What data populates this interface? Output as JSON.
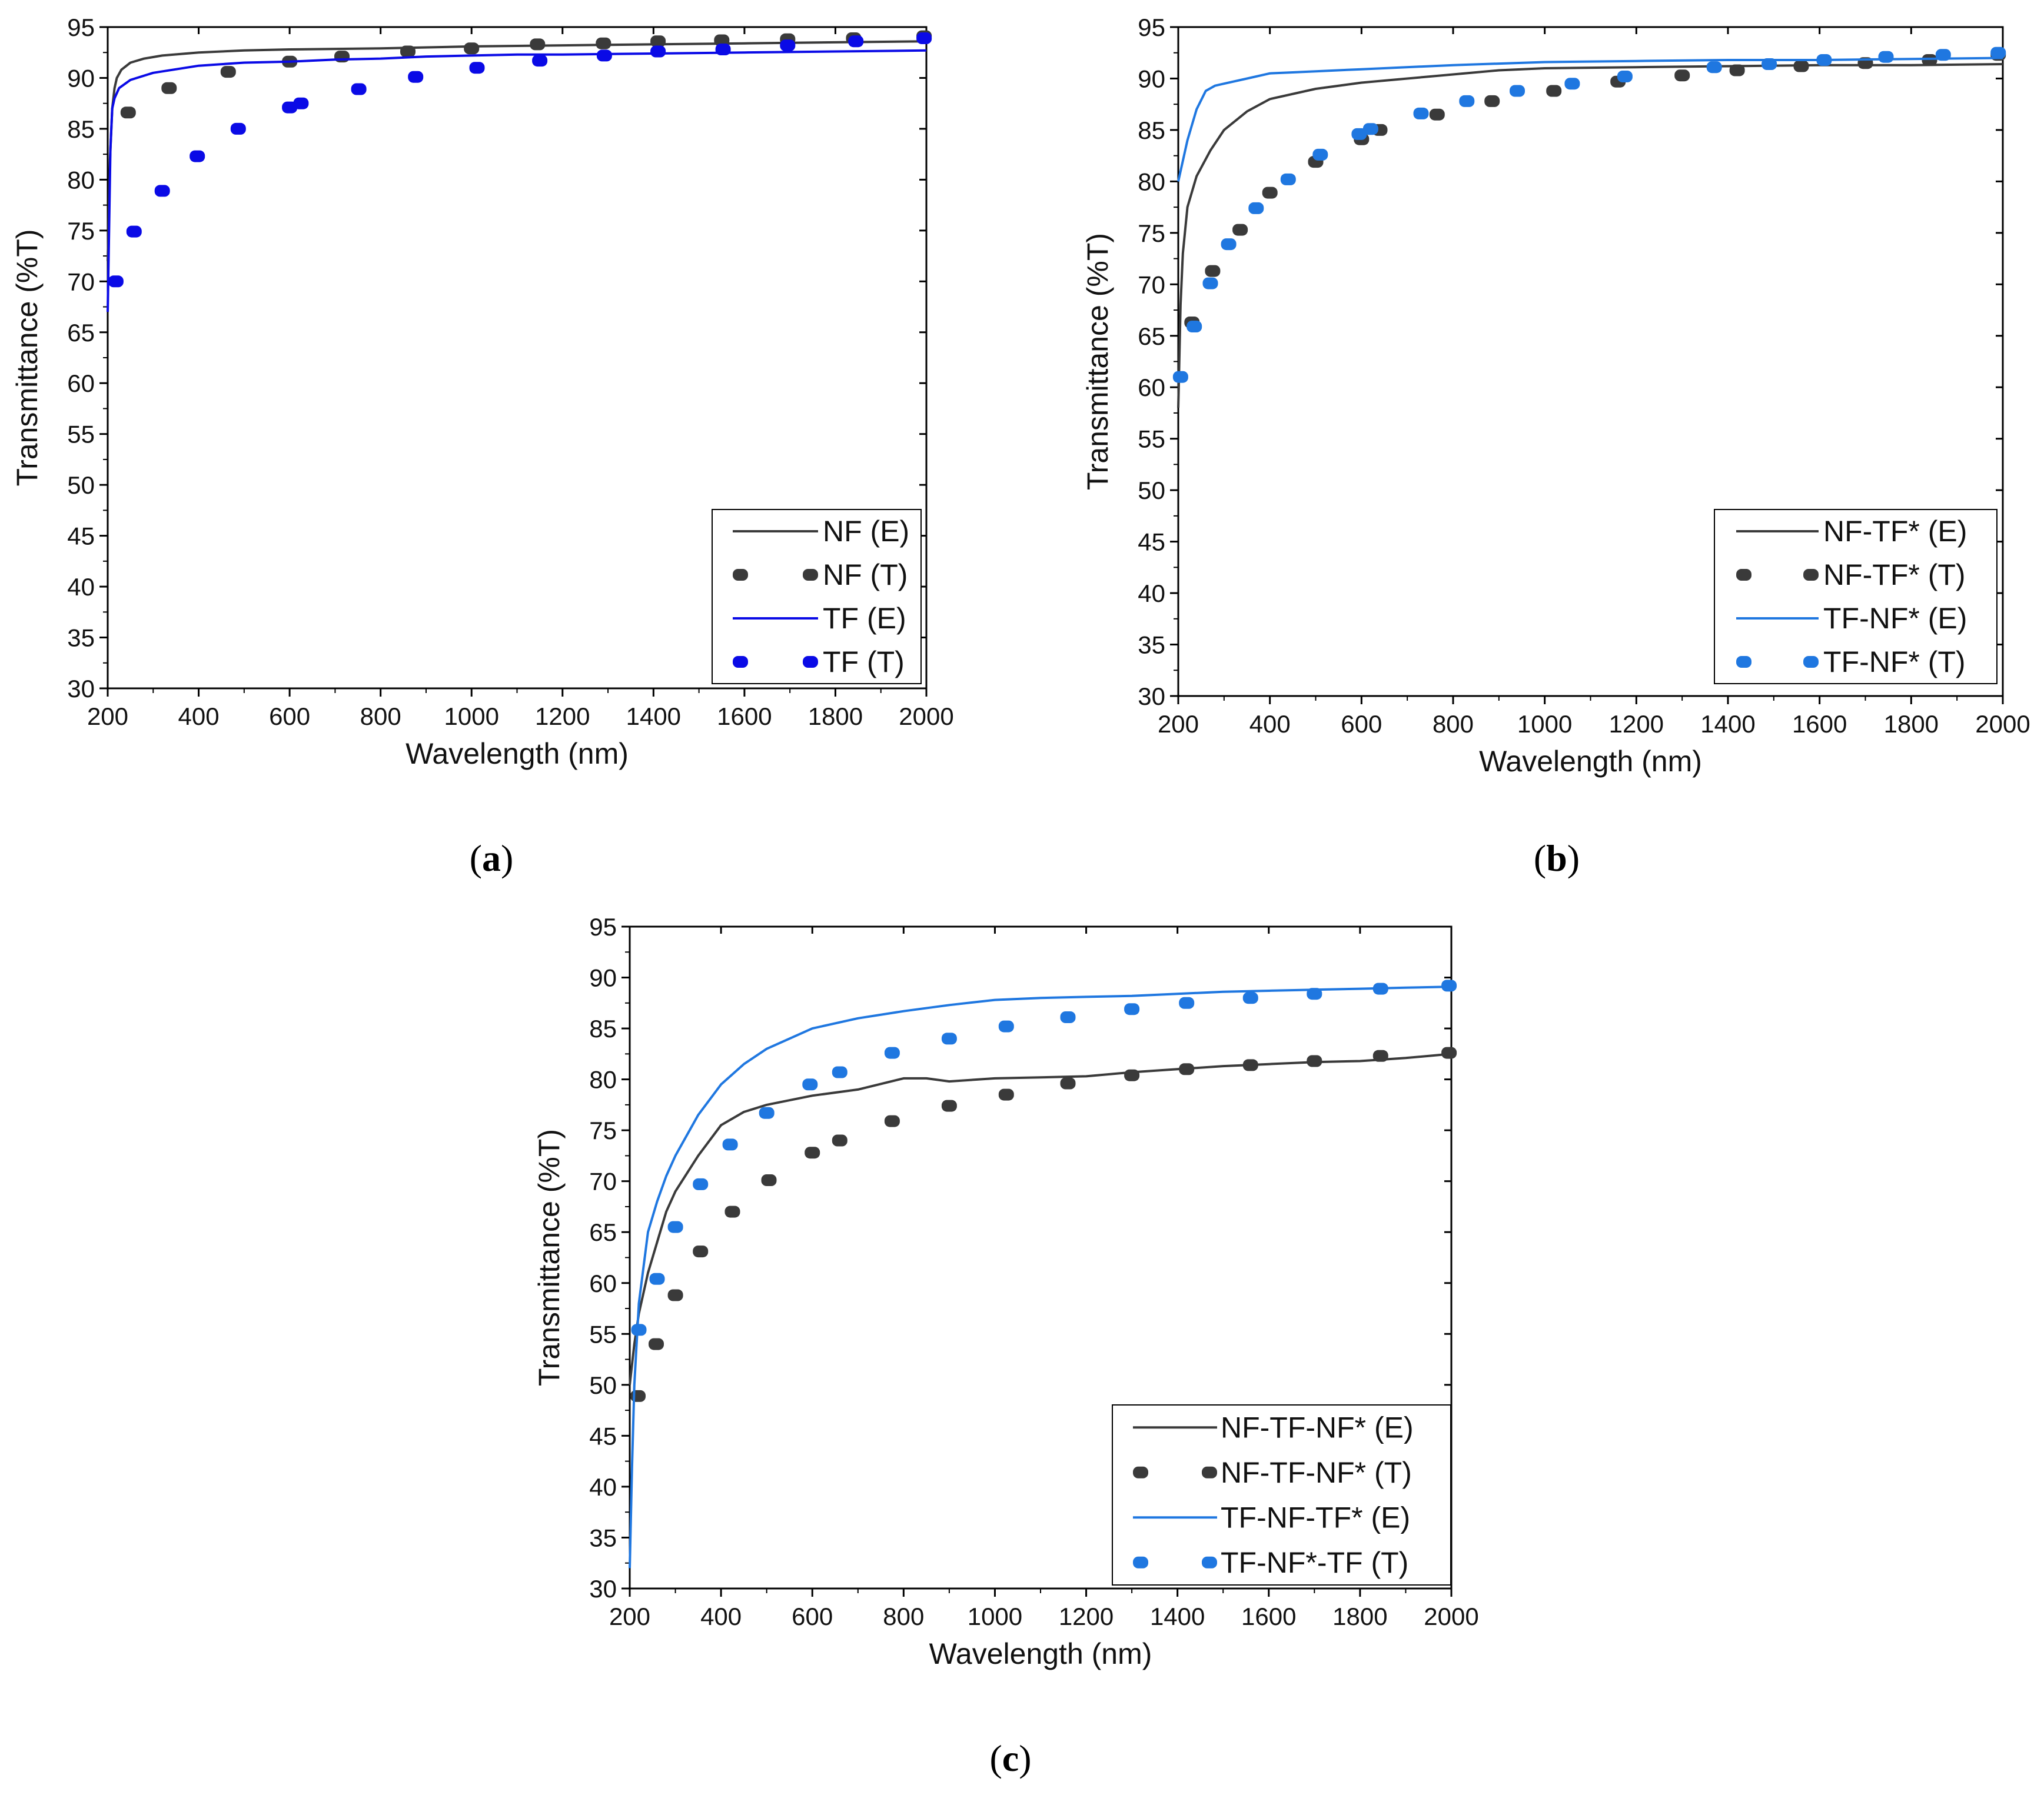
{
  "colors": {
    "black_series": "#3a3a3a",
    "blue_a": "#0a0ae6",
    "blue_bc": "#1f77e0",
    "axis": "#000000"
  },
  "chart_data": [
    {
      "type": "line",
      "panel": "a",
      "panel_label": "a",
      "xlabel": "Wavelength (nm)",
      "ylabel": "Transmittance (%T)",
      "xlim": [
        200,
        2000
      ],
      "ylim": [
        30,
        95
      ],
      "xticks": [
        "200",
        "400",
        "600",
        "800",
        "1000",
        "1200",
        "1400",
        "1600",
        "1800",
        "2000"
      ],
      "yticks": [
        "30",
        "35",
        "40",
        "45",
        "50",
        "55",
        "60",
        "65",
        "70",
        "75",
        "80",
        "85",
        "90",
        "95"
      ],
      "legend_position": "bottom-right",
      "series": [
        {
          "name": "NF (E)",
          "style": "solid",
          "color": "#3a3a3a",
          "x": [
            200,
            205,
            210,
            215,
            220,
            230,
            250,
            280,
            320,
            400,
            500,
            600,
            800,
            1000,
            1200,
            1400,
            1600,
            1800,
            2000
          ],
          "y": [
            72,
            82,
            87,
            89,
            90,
            90.8,
            91.5,
            91.9,
            92.2,
            92.5,
            92.7,
            92.8,
            92.9,
            93.1,
            93.2,
            93.3,
            93.4,
            93.5,
            93.6
          ]
        },
        {
          "name": "NF (T)",
          "style": "dotted",
          "color": "#3a3a3a",
          "x": [
            245,
            335,
            465,
            600,
            715,
            860,
            1000,
            1145,
            1290,
            1410,
            1550,
            1695,
            1840,
            1995
          ],
          "y": [
            86.6,
            89,
            90.6,
            91.6,
            92.1,
            92.6,
            92.9,
            93.3,
            93.4,
            93.6,
            93.7,
            93.8,
            93.9,
            94.1
          ]
        },
        {
          "name": "TF (E)",
          "style": "solid",
          "color": "#0a0ae6",
          "x": [
            200,
            203,
            206,
            210,
            215,
            225,
            250,
            300,
            400,
            500,
            600,
            700,
            800,
            900,
            1000,
            1100,
            1200,
            1400,
            1600,
            1800,
            2000
          ],
          "y": [
            67,
            75,
            83,
            87,
            88,
            89,
            89.8,
            90.5,
            91.2,
            91.5,
            91.6,
            91.8,
            91.9,
            92.1,
            92.2,
            92.3,
            92.3,
            92.4,
            92.5,
            92.6,
            92.7
          ]
        },
        {
          "name": "TF (T)",
          "style": "dotted",
          "color": "#0a0ae6",
          "x": [
            218,
            258,
            320,
            397,
            487,
            600,
            625,
            752,
            877,
            1012,
            1150,
            1292,
            1410,
            1553,
            1695,
            1845,
            1995
          ],
          "y": [
            70,
            74.9,
            78.9,
            82.3,
            85,
            87.1,
            87.5,
            88.9,
            90.1,
            91,
            91.7,
            92.2,
            92.6,
            92.8,
            93.2,
            93.6,
            93.9
          ]
        }
      ]
    },
    {
      "type": "line",
      "panel": "b",
      "panel_label": "b",
      "xlabel": "Wavelength (nm)",
      "ylabel": "Transmittance (%T)",
      "xlim": [
        200,
        2000
      ],
      "ylim": [
        30,
        95
      ],
      "xticks": [
        "200",
        "400",
        "600",
        "800",
        "1000",
        "1200",
        "1400",
        "1600",
        "1800",
        "2000"
      ],
      "yticks": [
        "30",
        "35",
        "40",
        "45",
        "50",
        "55",
        "60",
        "65",
        "70",
        "75",
        "80",
        "85",
        "90",
        "95"
      ],
      "legend_position": "bottom-right",
      "series": [
        {
          "name": "NF-TF* (E)",
          "style": "solid",
          "color": "#3a3a3a",
          "x": [
            200,
            205,
            210,
            220,
            240,
            270,
            300,
            350,
            400,
            500,
            600,
            700,
            800,
            900,
            1000,
            1200,
            1400,
            1600,
            1800,
            2000
          ],
          "y": [
            58,
            68,
            73,
            77.5,
            80.5,
            83,
            85,
            86.8,
            88,
            89,
            89.6,
            90,
            90.4,
            90.8,
            91,
            91.1,
            91.2,
            91.3,
            91.3,
            91.4
          ]
        },
        {
          "name": "NF-TF* (T)",
          "style": "dotted",
          "color": "#3a3a3a",
          "x": [
            230,
            275,
            335,
            400,
            500,
            600,
            640,
            765,
            885,
            1020,
            1160,
            1300,
            1420,
            1560,
            1700,
            1840,
            1990
          ],
          "y": [
            66.3,
            71.3,
            75.3,
            78.9,
            81.9,
            84.1,
            85,
            86.5,
            87.8,
            88.8,
            89.7,
            90.3,
            90.8,
            91.2,
            91.5,
            91.8,
            92.3
          ]
        },
        {
          "name": "TF-NF* (E)",
          "style": "solid",
          "color": "#1f77e0",
          "x": [
            200,
            210,
            220,
            240,
            260,
            280,
            300,
            350,
            400,
            450,
            500,
            600,
            800,
            1000,
            1200,
            1400,
            1600,
            1800,
            2000
          ],
          "y": [
            80,
            82,
            84,
            87,
            88.8,
            89.3,
            89.5,
            90,
            90.5,
            90.6,
            90.7,
            90.9,
            91.3,
            91.6,
            91.7,
            91.8,
            91.8,
            91.9,
            92
          ]
        },
        {
          "name": "TF-NF* (T)",
          "style": "dotted",
          "color": "#1f77e0",
          "x": [
            205,
            235,
            270,
            310,
            370,
            440,
            510,
            595,
            620,
            730,
            830,
            940,
            1060,
            1175,
            1370,
            1490,
            1610,
            1745,
            1870,
            1990
          ],
          "y": [
            61,
            65.9,
            70.1,
            73.9,
            77.4,
            80.2,
            82.6,
            84.6,
            85.1,
            86.6,
            87.8,
            88.8,
            89.5,
            90.2,
            91.1,
            91.4,
            91.8,
            92.1,
            92.3,
            92.5
          ]
        }
      ]
    },
    {
      "type": "line",
      "panel": "c",
      "panel_label": "c",
      "xlabel": "Wavelength (nm)",
      "ylabel": "Transmittance (%T)",
      "xlim": [
        200,
        2000
      ],
      "ylim": [
        30,
        95
      ],
      "xticks": [
        "200",
        "400",
        "600",
        "800",
        "1000",
        "1200",
        "1400",
        "1600",
        "1800",
        "2000"
      ],
      "yticks": [
        "30",
        "35",
        "40",
        "45",
        "50",
        "55",
        "60",
        "65",
        "70",
        "75",
        "80",
        "85",
        "90",
        "95"
      ],
      "legend_position": "bottom-right",
      "series": [
        {
          "name": "NF-TF-NF* (E)",
          "style": "solid",
          "color": "#3a3a3a",
          "x": [
            200,
            210,
            220,
            240,
            260,
            280,
            300,
            350,
            400,
            450,
            500,
            600,
            700,
            800,
            850,
            900,
            1000,
            1100,
            1200,
            1300,
            1400,
            1500,
            1600,
            1700,
            1800,
            1900,
            2000
          ],
          "y": [
            50,
            54,
            57,
            61,
            64,
            67,
            69,
            72.5,
            75.5,
            76.8,
            77.5,
            78.4,
            79,
            80.1,
            80.1,
            79.8,
            80.1,
            80.2,
            80.3,
            80.7,
            81,
            81.3,
            81.5,
            81.7,
            81.8,
            82.1,
            82.5
          ]
        },
        {
          "name": "NF-TF-NF* (T)",
          "style": "dotted",
          "color": "#3a3a3a",
          "x": [
            218,
            258,
            300,
            355,
            425,
            505,
            600,
            660,
            775,
            900,
            1025,
            1160,
            1300,
            1420,
            1560,
            1700,
            1845,
            1995
          ],
          "y": [
            48.9,
            54,
            58.8,
            63.1,
            67,
            70.1,
            72.8,
            74,
            75.9,
            77.4,
            78.5,
            79.6,
            80.4,
            81,
            81.4,
            81.8,
            82.3,
            82.6
          ]
        },
        {
          "name": "TF-NF-TF* (E)",
          "style": "solid",
          "color": "#1f77e0",
          "x": [
            200,
            205,
            210,
            220,
            240,
            260,
            280,
            300,
            350,
            400,
            450,
            500,
            600,
            700,
            800,
            900,
            1000,
            1100,
            1200,
            1300,
            1400,
            1500,
            1600,
            1700,
            1800,
            1900,
            2000
          ],
          "y": [
            32,
            42,
            50,
            58,
            65,
            68,
            70.5,
            72.5,
            76.5,
            79.5,
            81.5,
            83,
            85,
            86,
            86.7,
            87.3,
            87.8,
            88,
            88.1,
            88.2,
            88.4,
            88.6,
            88.7,
            88.8,
            88.9,
            89,
            89.1
          ]
        },
        {
          "name": "TF-NF*-TF (T)",
          "style": "dotted",
          "color": "#1f77e0",
          "x": [
            220,
            260,
            300,
            355,
            420,
            500,
            595,
            660,
            775,
            900,
            1025,
            1160,
            1300,
            1420,
            1560,
            1700,
            1845,
            1995
          ],
          "y": [
            55.4,
            60.4,
            65.5,
            69.7,
            73.6,
            76.7,
            79.5,
            80.7,
            82.6,
            84,
            85.2,
            86.1,
            86.9,
            87.5,
            88,
            88.4,
            88.9,
            89.2
          ]
        }
      ]
    }
  ]
}
